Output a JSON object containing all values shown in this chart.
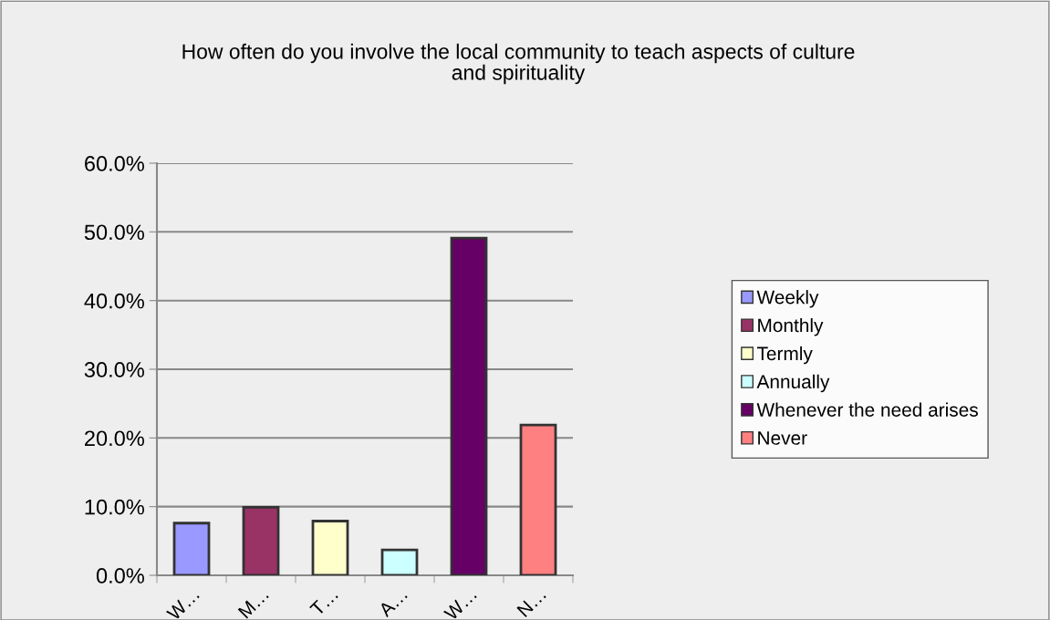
{
  "chart_data": {
    "type": "bar",
    "title": "How often do you involve the local community to teach aspects of culture\nand spirituality",
    "categories": [
      "W…",
      "M…",
      "T…",
      "A…",
      "W…",
      "N…"
    ],
    "series": [
      {
        "name": "Weekly",
        "color": "#9999ff",
        "values": [
          7.6,
          null,
          null,
          null,
          null,
          null
        ]
      },
      {
        "name": "Monthly",
        "color": "#993366",
        "values": [
          null,
          9.9,
          null,
          null,
          null,
          null
        ]
      },
      {
        "name": "Termly",
        "color": "#ffffcc",
        "values": [
          null,
          null,
          7.9,
          null,
          null,
          null
        ]
      },
      {
        "name": "Annually",
        "color": "#ccffff",
        "values": [
          null,
          null,
          null,
          3.7,
          null,
          null
        ]
      },
      {
        "name": "Whenever the need arises",
        "color": "#660066",
        "values": [
          null,
          null,
          null,
          null,
          49.1,
          null
        ]
      },
      {
        "name": "Never",
        "color": "#ff8080",
        "values": [
          null,
          null,
          null,
          null,
          null,
          21.9
        ]
      }
    ],
    "ylim": [
      0,
      60
    ],
    "yticks": [
      {
        "value": 0,
        "label": "0.0%"
      },
      {
        "value": 10,
        "label": "10.0%"
      },
      {
        "value": 20,
        "label": "20.0%"
      },
      {
        "value": 30,
        "label": "30.0%"
      },
      {
        "value": 40,
        "label": "40.0%"
      },
      {
        "value": 50,
        "label": "50.0%"
      },
      {
        "value": 60,
        "label": "60.0%"
      }
    ],
    "grid": "y",
    "legend": "right"
  }
}
